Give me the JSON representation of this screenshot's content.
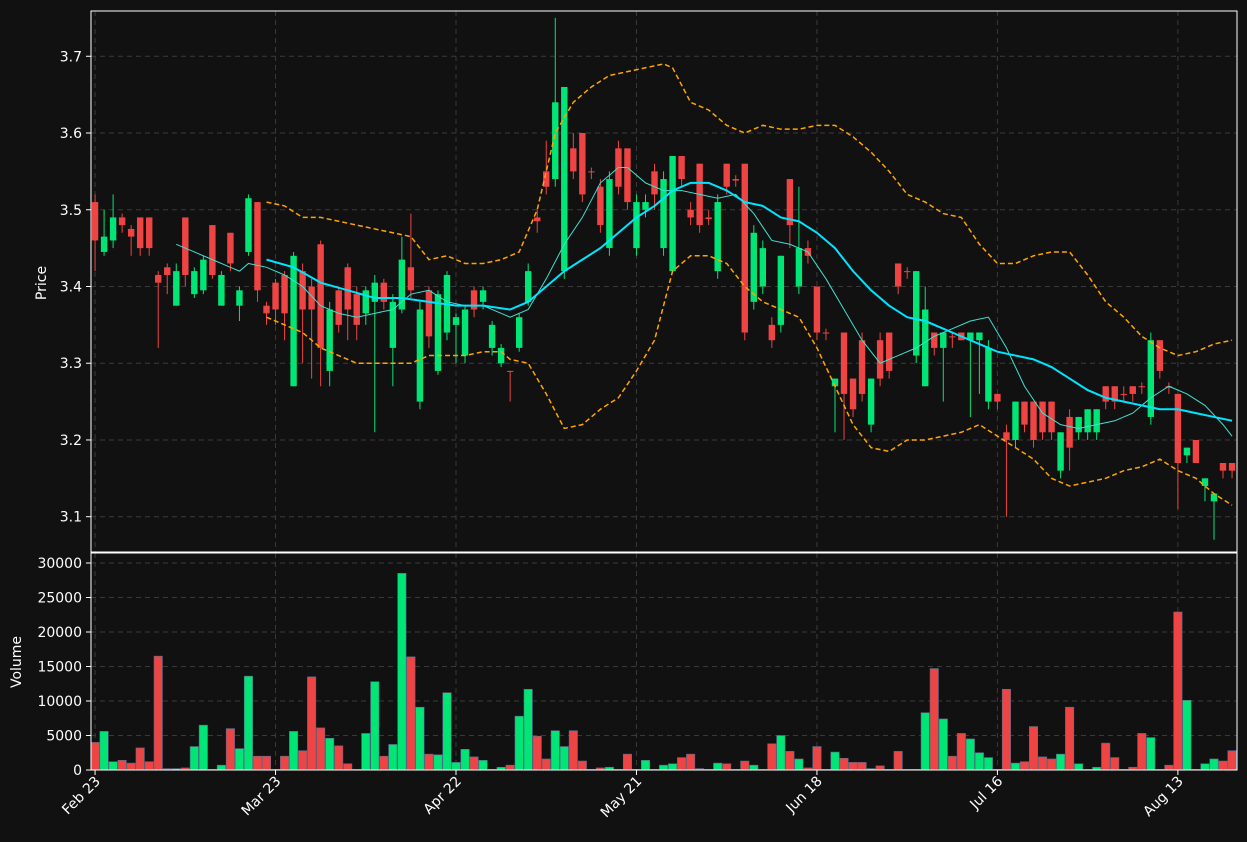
{
  "chart_data": [
    {
      "type": "candlestick",
      "ylabel": "Price",
      "xlim": [
        -0.45,
        126.55
      ],
      "ylim": [
        3.054,
        3.759
      ],
      "yticks": [
        3.1,
        3.2,
        3.3,
        3.4,
        3.5,
        3.6,
        3.7
      ],
      "grid": true,
      "up_color": "#00e676",
      "down_color": "#ef4444",
      "open": [
        3.51,
        3.445,
        3.46,
        3.49,
        3.475,
        3.49,
        3.49,
        3.415,
        3.425,
        3.375,
        3.49,
        3.39,
        3.395,
        3.48,
        3.375,
        3.47,
        3.375,
        3.445,
        3.51,
        3.375,
        3.405,
        3.415,
        3.27,
        3.42,
        3.4,
        3.455,
        3.29,
        3.395,
        3.425,
        3.39,
        3.365,
        3.38,
        3.405,
        3.32,
        3.37,
        3.425,
        3.25,
        3.395,
        3.29,
        3.34,
        3.35,
        3.31,
        3.395,
        3.38,
        3.32,
        3.3,
        3.29,
        3.32,
        3.38,
        3.49,
        3.55,
        3.54,
        3.42,
        3.58,
        3.6,
        3.55,
        3.53,
        3.45,
        3.58,
        3.58,
        3.45,
        3.5,
        3.55,
        3.45,
        3.42,
        3.57,
        3.5,
        3.56,
        3.49,
        3.42,
        3.56,
        3.54,
        3.56,
        3.38,
        3.4,
        3.35,
        3.35,
        3.54,
        3.4,
        3.45,
        3.4,
        3.34,
        3.27,
        3.34,
        3.28,
        3.33,
        3.22,
        3.33,
        3.34,
        3.43,
        3.42,
        3.31,
        3.27,
        3.34,
        3.32,
        3.335,
        3.34,
        3.33,
        3.33,
        3.25,
        3.26,
        3.21,
        3.2,
        3.25,
        3.25,
        3.25,
        3.25,
        3.16,
        3.23,
        3.21,
        3.21,
        3.21,
        3.27,
        3.27,
        3.26,
        3.27,
        3.27,
        3.23,
        3.33,
        3.27,
        3.26,
        3.18,
        3.2,
        3.14,
        3.12,
        3.17,
        3.17
      ],
      "high": [
        3.52,
        3.5,
        3.52,
        3.495,
        3.48,
        3.49,
        3.49,
        3.42,
        3.43,
        3.43,
        3.49,
        3.425,
        3.44,
        3.48,
        3.42,
        3.47,
        3.4,
        3.52,
        3.51,
        3.38,
        3.41,
        3.42,
        3.445,
        3.43,
        3.41,
        3.46,
        3.38,
        3.4,
        3.43,
        3.4,
        3.4,
        3.415,
        3.41,
        3.39,
        3.465,
        3.495,
        3.38,
        3.4,
        3.395,
        3.42,
        3.365,
        3.375,
        3.4,
        3.4,
        3.355,
        3.325,
        3.29,
        3.365,
        3.43,
        3.5,
        3.59,
        3.75,
        3.66,
        3.6,
        3.6,
        3.555,
        3.54,
        3.55,
        3.59,
        3.58,
        3.52,
        3.52,
        3.56,
        3.55,
        3.57,
        3.57,
        3.51,
        3.56,
        3.5,
        3.52,
        3.56,
        3.545,
        3.56,
        3.48,
        3.46,
        3.36,
        3.44,
        3.54,
        3.53,
        3.46,
        3.4,
        3.345,
        3.28,
        3.34,
        3.28,
        3.34,
        3.28,
        3.34,
        3.34,
        3.43,
        3.425,
        3.42,
        3.4,
        3.34,
        3.34,
        3.34,
        3.34,
        3.34,
        3.34,
        3.33,
        3.26,
        3.22,
        3.25,
        3.25,
        3.25,
        3.25,
        3.25,
        3.21,
        3.24,
        3.23,
        3.24,
        3.24,
        3.27,
        3.27,
        3.27,
        3.27,
        3.275,
        3.34,
        3.33,
        3.275,
        3.26,
        3.19,
        3.2,
        3.15,
        3.13,
        3.17,
        3.17
      ],
      "low": [
        3.42,
        3.44,
        3.45,
        3.47,
        3.44,
        3.44,
        3.44,
        3.32,
        3.39,
        3.375,
        3.4,
        3.385,
        3.39,
        3.41,
        3.375,
        3.42,
        3.355,
        3.44,
        3.38,
        3.35,
        3.35,
        3.33,
        3.27,
        3.3,
        3.28,
        3.27,
        3.27,
        3.34,
        3.33,
        3.33,
        3.35,
        3.21,
        3.37,
        3.27,
        3.365,
        3.385,
        3.24,
        3.32,
        3.285,
        3.33,
        3.3,
        3.3,
        3.36,
        3.37,
        3.31,
        3.295,
        3.25,
        3.315,
        3.375,
        3.47,
        3.52,
        3.53,
        3.41,
        3.54,
        3.51,
        3.54,
        3.47,
        3.44,
        3.52,
        3.5,
        3.44,
        3.49,
        3.5,
        3.44,
        3.42,
        3.53,
        3.48,
        3.47,
        3.48,
        3.41,
        3.52,
        3.53,
        3.33,
        3.37,
        3.39,
        3.32,
        3.34,
        3.45,
        3.39,
        3.43,
        3.33,
        3.33,
        3.21,
        3.2,
        3.23,
        3.25,
        3.21,
        3.27,
        3.28,
        3.39,
        3.41,
        3.3,
        3.27,
        3.31,
        3.25,
        3.32,
        3.33,
        3.23,
        3.26,
        3.24,
        3.24,
        3.1,
        3.19,
        3.21,
        3.19,
        3.2,
        3.2,
        3.15,
        3.16,
        3.2,
        3.2,
        3.2,
        3.24,
        3.24,
        3.25,
        3.25,
        3.26,
        3.22,
        3.28,
        3.26,
        3.11,
        3.17,
        3.17,
        3.12,
        3.07,
        3.15,
        3.15
      ],
      "close": [
        3.46,
        3.465,
        3.49,
        3.48,
        3.465,
        3.45,
        3.45,
        3.405,
        3.415,
        3.42,
        3.415,
        3.42,
        3.435,
        3.415,
        3.415,
        3.43,
        3.395,
        3.515,
        3.395,
        3.365,
        3.37,
        3.365,
        3.44,
        3.37,
        3.37,
        3.32,
        3.37,
        3.35,
        3.37,
        3.35,
        3.395,
        3.405,
        3.38,
        3.38,
        3.435,
        3.395,
        3.37,
        3.335,
        3.39,
        3.415,
        3.36,
        3.37,
        3.37,
        3.395,
        3.35,
        3.32,
        3.289,
        3.36,
        3.42,
        3.485,
        3.53,
        3.64,
        3.66,
        3.55,
        3.52,
        3.549,
        3.48,
        3.54,
        3.53,
        3.51,
        3.51,
        3.51,
        3.52,
        3.54,
        3.57,
        3.54,
        3.49,
        3.48,
        3.488,
        3.51,
        3.53,
        3.538,
        3.34,
        3.47,
        3.45,
        3.33,
        3.44,
        3.48,
        3.45,
        3.44,
        3.34,
        3.339,
        3.28,
        3.26,
        3.24,
        3.26,
        3.28,
        3.28,
        3.29,
        3.4,
        3.419,
        3.42,
        3.37,
        3.32,
        3.34,
        3.334,
        3.33,
        3.34,
        3.34,
        3.32,
        3.25,
        3.2,
        3.25,
        3.22,
        3.2,
        3.21,
        3.21,
        3.21,
        3.19,
        3.23,
        3.24,
        3.24,
        3.25,
        3.25,
        3.259,
        3.26,
        3.269,
        3.33,
        3.29,
        3.268,
        3.17,
        3.19,
        3.17,
        3.15,
        3.13,
        3.16,
        3.16
      ],
      "series": [
        {
          "color": "#ffa500",
          "style": "dashed",
          "width": 1.5,
          "x": [
            19,
            21,
            23,
            25,
            27,
            29,
            31,
            33,
            35,
            36,
            37,
            39,
            41,
            43,
            45,
            47,
            49,
            51,
            53,
            55,
            57,
            59,
            61,
            63,
            64,
            66,
            68,
            70,
            72,
            74,
            76,
            78,
            80,
            82,
            84,
            86,
            88,
            90,
            92,
            94,
            96,
            98,
            100,
            102,
            104,
            106,
            108,
            110,
            112,
            114,
            116,
            118,
            120,
            122,
            124,
            126
          ],
          "values": [
            3.51,
            3.505,
            3.49,
            3.49,
            3.485,
            3.48,
            3.475,
            3.47,
            3.465,
            3.45,
            3.435,
            3.44,
            3.43,
            3.43,
            3.435,
            3.445,
            3.5,
            3.6,
            3.64,
            3.66,
            3.675,
            3.68,
            3.685,
            3.69,
            3.685,
            3.64,
            3.63,
            3.61,
            3.6,
            3.61,
            3.605,
            3.605,
            3.61,
            3.61,
            3.595,
            3.575,
            3.55,
            3.52,
            3.51,
            3.495,
            3.49,
            3.455,
            3.43,
            3.43,
            3.44,
            3.445,
            3.445,
            3.415,
            3.38,
            3.36,
            3.335,
            3.32,
            3.31,
            3.315,
            3.325,
            3.33
          ]
        },
        {
          "color": "#ffa500",
          "style": "dashed",
          "width": 1.5,
          "x": [
            19,
            21,
            23,
            25,
            27,
            29,
            31,
            33,
            35,
            37,
            39,
            41,
            43,
            45,
            46,
            48,
            50,
            52,
            54,
            56,
            58,
            60,
            62,
            64,
            66,
            68,
            70,
            72,
            74,
            76,
            78,
            80,
            82,
            84,
            86,
            88,
            90,
            92,
            94,
            96,
            98,
            100,
            102,
            104,
            106,
            108,
            110,
            112,
            114,
            116,
            118,
            120,
            122,
            124,
            126
          ],
          "values": [
            3.36,
            3.35,
            3.34,
            3.32,
            3.31,
            3.3,
            3.3,
            3.3,
            3.3,
            3.31,
            3.31,
            3.31,
            3.315,
            3.315,
            3.305,
            3.3,
            3.26,
            3.215,
            3.22,
            3.24,
            3.255,
            3.29,
            3.33,
            3.42,
            3.44,
            3.44,
            3.43,
            3.4,
            3.38,
            3.37,
            3.36,
            3.32,
            3.27,
            3.22,
            3.19,
            3.185,
            3.2,
            3.2,
            3.205,
            3.21,
            3.22,
            3.205,
            3.19,
            3.175,
            3.15,
            3.14,
            3.145,
            3.15,
            3.16,
            3.165,
            3.175,
            3.16,
            3.15,
            3.13,
            3.115
          ]
        },
        {
          "color": "#40e0d0",
          "style": "solid",
          "width": 1,
          "x": [
            9,
            11,
            13,
            15,
            16,
            17,
            19,
            21,
            23,
            25,
            27,
            29,
            31,
            33,
            35,
            37,
            39,
            41,
            43,
            45,
            46,
            48,
            50,
            52,
            54,
            56,
            58,
            59,
            61,
            63,
            65,
            67,
            69,
            71,
            73,
            75,
            77,
            79,
            81,
            83,
            85,
            87,
            89,
            91,
            93,
            95,
            97,
            99,
            101,
            103,
            105,
            107,
            109,
            111,
            113,
            115,
            117,
            119,
            121,
            123,
            125,
            126
          ],
          "values": [
            3.455,
            3.445,
            3.435,
            3.425,
            3.42,
            3.43,
            3.425,
            3.415,
            3.4,
            3.375,
            3.365,
            3.36,
            3.365,
            3.37,
            3.39,
            3.395,
            3.38,
            3.375,
            3.375,
            3.365,
            3.36,
            3.37,
            3.41,
            3.455,
            3.49,
            3.535,
            3.555,
            3.555,
            3.535,
            3.525,
            3.525,
            3.52,
            3.515,
            3.52,
            3.495,
            3.46,
            3.455,
            3.445,
            3.41,
            3.37,
            3.33,
            3.3,
            3.31,
            3.32,
            3.335,
            3.345,
            3.355,
            3.36,
            3.32,
            3.27,
            3.235,
            3.22,
            3.215,
            3.22,
            3.225,
            3.235,
            3.255,
            3.27,
            3.26,
            3.245,
            3.22,
            3.205
          ]
        },
        {
          "color": "#00e5ff",
          "style": "solid",
          "width": 2,
          "x": [
            19,
            22,
            25,
            28,
            31,
            34,
            37,
            40,
            43,
            46,
            48,
            50,
            52,
            54,
            56,
            58,
            60,
            62,
            64,
            66,
            68,
            70,
            72,
            74,
            76,
            78,
            80,
            82,
            84,
            86,
            88,
            90,
            92,
            94,
            96,
            98,
            100,
            102,
            104,
            106,
            108,
            110,
            112,
            114,
            116,
            118,
            120,
            122,
            124,
            126
          ],
          "values": [
            3.435,
            3.425,
            3.405,
            3.395,
            3.385,
            3.385,
            3.38,
            3.375,
            3.375,
            3.37,
            3.38,
            3.4,
            3.42,
            3.435,
            3.45,
            3.47,
            3.49,
            3.505,
            3.525,
            3.535,
            3.535,
            3.525,
            3.51,
            3.505,
            3.49,
            3.485,
            3.47,
            3.45,
            3.42,
            3.395,
            3.375,
            3.36,
            3.355,
            3.345,
            3.335,
            3.325,
            3.315,
            3.31,
            3.305,
            3.295,
            3.28,
            3.265,
            3.255,
            3.25,
            3.245,
            3.24,
            3.24,
            3.235,
            3.23,
            3.225
          ]
        }
      ]
    },
    {
      "type": "bar",
      "ylabel": "Volume",
      "xlim": [
        -0.45,
        126.55
      ],
      "ylim": [
        0,
        31450
      ],
      "yticks": [
        0,
        5000,
        10000,
        15000,
        20000,
        25000,
        30000
      ],
      "grid": true,
      "xticks": [
        {
          "value": 0,
          "label": "Feb 23"
        },
        {
          "value": 20,
          "label": "Mar 23"
        },
        {
          "value": 40,
          "label": "Apr 22"
        },
        {
          "value": 60,
          "label": "May 21"
        },
        {
          "value": 80,
          "label": "Jun 18"
        },
        {
          "value": 100,
          "label": "Jul 16"
        },
        {
          "value": 120,
          "label": "Aug 13"
        }
      ],
      "values": [
        4000,
        5600,
        1200,
        1400,
        1000,
        3200,
        1200,
        16500,
        200,
        200,
        300,
        3400,
        6500,
        100,
        700,
        6000,
        3100,
        13600,
        2000,
        2000,
        100,
        2000,
        5600,
        2800,
        13500,
        6100,
        4600,
        3500,
        900,
        100,
        5300,
        12800,
        2000,
        3700,
        28500,
        16400,
        9100,
        2300,
        2200,
        11200,
        1100,
        3000,
        1900,
        1400,
        100,
        400,
        700,
        7800,
        11700,
        4900,
        1600,
        5700,
        3400,
        5700,
        1300,
        100,
        300,
        400,
        100,
        2300,
        100,
        1400,
        100,
        700,
        900,
        1800,
        2300,
        200,
        100,
        1000,
        900,
        100,
        1300,
        700,
        100,
        3800,
        5000,
        2700,
        1600,
        300,
        3400,
        100,
        2600,
        1700,
        1100,
        1100,
        200,
        600,
        100,
        2700,
        100,
        100,
        8300,
        14700,
        7400,
        2000,
        5300,
        4500,
        2500,
        1800,
        100,
        11700,
        1000,
        1200,
        6300,
        1900,
        1600,
        2300,
        9100,
        900,
        100,
        400,
        3900,
        1800,
        100,
        400,
        5300,
        4700,
        100,
        700,
        22900,
        10100,
        100,
        900,
        1600,
        1300,
        2800
      ]
    }
  ]
}
